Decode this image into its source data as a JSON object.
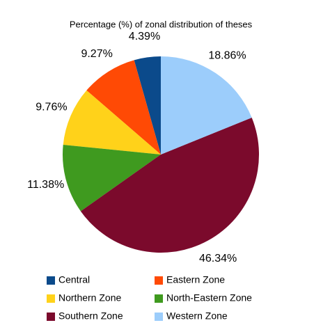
{
  "chart_data": {
    "type": "pie",
    "title": "Percentage (%) of zonal distribution of theses",
    "categories": [
      "Central",
      "Eastern Zone",
      "Northern Zone",
      "North-Eastern Zone",
      "Southern Zone",
      "Western Zone"
    ],
    "values": [
      4.39,
      9.27,
      9.76,
      11.38,
      46.34,
      18.86
    ],
    "value_labels": [
      "4.39%",
      "9.27%",
      "9.76%",
      "11.38%",
      "46.34%",
      "18.86%"
    ],
    "colors": [
      "#0b4a8b",
      "#ff4a05",
      "#ffd21a",
      "#3f9a1f",
      "#7b0a2c",
      "#9ccdfb"
    ],
    "legend": "bottom"
  }
}
